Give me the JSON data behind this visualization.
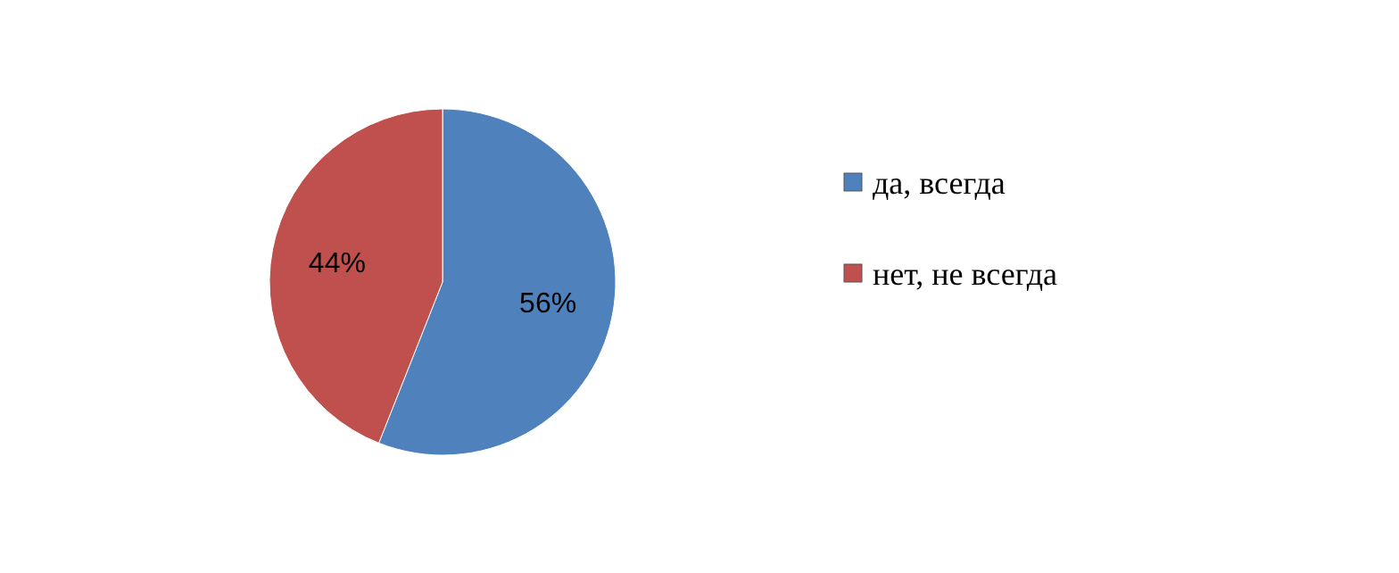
{
  "chart_data": {
    "type": "pie",
    "categories": [
      "да, всегда",
      "нет, не всегда"
    ],
    "values": [
      56,
      44
    ],
    "colors": [
      "#4f81bd",
      "#c0504d"
    ],
    "value_labels": [
      "56%",
      "44%"
    ],
    "legend": "right"
  }
}
